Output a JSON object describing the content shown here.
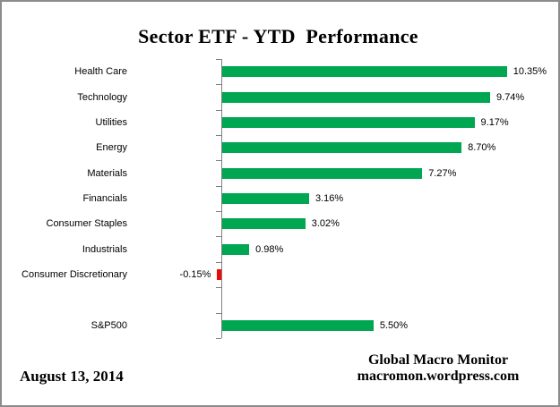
{
  "title": "Sector ETF - YTD  Performance",
  "footer": {
    "date": "August 13, 2014",
    "source_line1": "Global Macro Monitor",
    "source_line2": "macromon.wordpress.com"
  },
  "colors": {
    "positive_bar": "#00A651",
    "negative_bar": "#EE0A0A",
    "axis": "#808080",
    "tick": "#808080",
    "frame_border": "#8C8C8C",
    "text": "#000000"
  },
  "chart_data": {
    "type": "bar",
    "orientation": "horizontal",
    "title": "Sector ETF - YTD  Performance",
    "xlabel": "",
    "ylabel": "",
    "grid": false,
    "legend": false,
    "value_unit": "%",
    "xlim": [
      0,
      12
    ],
    "categories": [
      "Health Care",
      "Technology",
      "Utilities",
      "Energy",
      "Materials",
      "Financials",
      "Consumer Staples",
      "Industrials",
      "Consumer Discretionary",
      "",
      "S&P500"
    ],
    "values": [
      10.35,
      9.74,
      9.17,
      8.7,
      7.27,
      3.16,
      3.02,
      0.98,
      -0.15,
      null,
      5.5
    ],
    "value_labels": [
      "10.35%",
      "9.74%",
      "9.17%",
      "8.70%",
      "7.27%",
      "3.16%",
      "3.02%",
      "0.98%",
      "-0.15%",
      "",
      "5.50%"
    ]
  }
}
